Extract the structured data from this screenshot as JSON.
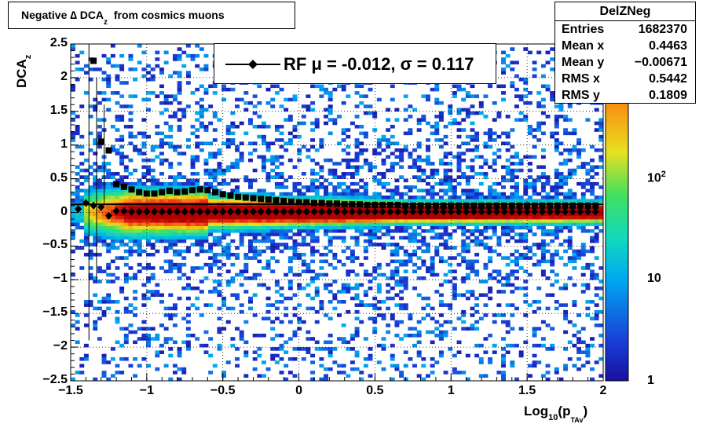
{
  "title": {
    "main": "Negative ∆ DCA",
    "sub": "z",
    "tail": "from cosmics muons"
  },
  "stats": {
    "name": "DelZNeg",
    "rows": [
      {
        "key": "Entries",
        "value": "1682370"
      },
      {
        "key": "Mean x",
        "value": "0.4463"
      },
      {
        "key": "Mean y",
        "value": "−0.00671"
      },
      {
        "key": "RMS x",
        "value": "0.5442"
      },
      {
        "key": "RMS y",
        "value": "0.1809"
      }
    ]
  },
  "legend": {
    "text": "RF μ = -0.012, σ =   0.117"
  },
  "axes": {
    "ylabel_main": "DCA",
    "ylabel_sub": "z",
    "xlabel_main": "Log",
    "xlabel_sub": "10",
    "xlabel_open": "(p",
    "xlabel_sub2": "TAv",
    "xlabel_close": ")"
  },
  "colors": {
    "palette": [
      "#1a0fa0",
      "#1840d8",
      "#00a8f0",
      "#10d8c0",
      "#40e060",
      "#e8e020",
      "#f89010",
      "#e82010",
      "#b00000"
    ],
    "markers": "#000000"
  },
  "chart_data": {
    "type": "heatmap",
    "xlim": [
      -1.5,
      2
    ],
    "ylim": [
      -2.5,
      2.5
    ],
    "zlog": true,
    "zlim": [
      1,
      2000
    ],
    "x_ticks": [
      "−1.5",
      "−1",
      "−0.5",
      "0",
      "0.5",
      "1",
      "1.5",
      "2"
    ],
    "y_ticks": [
      "2.5",
      "2",
      "1.5",
      "1",
      "0.5",
      "0",
      "−0.5",
      "−1",
      "−1.5",
      "−2",
      "−2.5"
    ],
    "z_ticks": [
      "1",
      "10",
      "10^2"
    ],
    "grid": true,
    "series": [
      {
        "name": "RF",
        "marker": "diamond",
        "x": [
          -1.45,
          -1.4,
          -1.35,
          -1.3,
          -1.25,
          -1.2,
          -1.15,
          -1.1,
          -1.05,
          -1.0,
          -0.95,
          -0.9,
          -0.85,
          -0.8,
          -0.75,
          -0.7,
          -0.65,
          -0.6,
          -0.55,
          -0.5,
          -0.45,
          -0.4,
          -0.35,
          -0.3,
          -0.25,
          -0.2,
          -0.15,
          -0.1,
          -0.05,
          0.0,
          0.05,
          0.1,
          0.15,
          0.2,
          0.25,
          0.3,
          0.35,
          0.4,
          0.45,
          0.5,
          0.55,
          0.6,
          0.65,
          0.7,
          0.75,
          0.8,
          0.85,
          0.9,
          0.95,
          1.0,
          1.05,
          1.1,
          1.15,
          1.2,
          1.25,
          1.3,
          1.35,
          1.4,
          1.45,
          1.5,
          1.55,
          1.6,
          1.65,
          1.7,
          1.75,
          1.8,
          1.85,
          1.9,
          1.95
        ],
        "y": [
          0.05,
          0.14,
          0.1,
          0.08,
          -0.05,
          0.02,
          0.02,
          0.01,
          0.01,
          0.01,
          0.01,
          0.01,
          0.01,
          0.01,
          0.01,
          0.01,
          0.01,
          0.01,
          0.01,
          0.01,
          0.01,
          0.01,
          0.01,
          0.01,
          0.01,
          0.01,
          0.01,
          0.01,
          0.01,
          0.01,
          0.01,
          0.01,
          0.01,
          0.01,
          0.01,
          0.01,
          0.01,
          0.01,
          0.01,
          0.01,
          0.01,
          0.01,
          0.01,
          0.01,
          0.01,
          0.01,
          0.01,
          0.01,
          0.01,
          0.01,
          0.01,
          0.01,
          0.01,
          0.01,
          0.01,
          0.01,
          0.01,
          0.01,
          0.01,
          0.01,
          0.01,
          0.01,
          0.01,
          0.01,
          0.01,
          0.01,
          0.01,
          0.01,
          0.01
        ]
      },
      {
        "name": "",
        "marker": "square",
        "x": [
          -1.35,
          -1.3,
          -1.25,
          -1.2,
          -1.15,
          -1.1,
          -1.05,
          -1.0,
          -0.95,
          -0.9,
          -0.85,
          -0.8,
          -0.75,
          -0.7,
          -0.65,
          -0.6,
          -0.55,
          -0.5,
          -0.45,
          -0.4,
          -0.35,
          -0.3,
          -0.25,
          -0.2,
          -0.15,
          -0.1,
          -0.05,
          0.0,
          0.05,
          0.1,
          0.15,
          0.2,
          0.25,
          0.3,
          0.35,
          0.4,
          0.45,
          0.5,
          0.55,
          0.6,
          0.65,
          0.7,
          0.75,
          0.8,
          0.85,
          0.9,
          0.95,
          1.0,
          1.05,
          1.1,
          1.15,
          1.2,
          1.25,
          1.3,
          1.35,
          1.4,
          1.45,
          1.5,
          1.55,
          1.6,
          1.65,
          1.7,
          1.75,
          1.8,
          1.85,
          1.9,
          1.95
        ],
        "y": [
          2.25,
          1.05,
          0.92,
          0.42,
          0.38,
          0.34,
          0.3,
          0.28,
          0.28,
          0.3,
          0.32,
          0.3,
          0.31,
          0.33,
          0.34,
          0.33,
          0.3,
          0.27,
          0.25,
          0.23,
          0.22,
          0.21,
          0.2,
          0.19,
          0.18,
          0.17,
          0.16,
          0.15,
          0.15,
          0.14,
          0.14,
          0.13,
          0.13,
          0.12,
          0.12,
          0.12,
          0.11,
          0.11,
          0.11,
          0.11,
          0.11,
          0.1,
          0.1,
          0.1,
          0.1,
          0.1,
          0.1,
          0.1,
          0.1,
          0.1,
          0.1,
          0.1,
          0.1,
          0.1,
          0.1,
          0.1,
          0.1,
          0.1,
          0.1,
          0.1,
          0.1,
          0.1,
          0.1,
          0.1,
          0.1,
          0.1,
          0.1
        ]
      }
    ],
    "fit_line": {
      "y": 0.12
    },
    "error_bars": [
      {
        "x": -1.38,
        "low": -1.9,
        "high": 2.5
      },
      {
        "x": -1.33,
        "low": -1.0,
        "high": 2.0
      },
      {
        "x": -1.28,
        "low": 0.1,
        "high": 1.6
      }
    ]
  }
}
